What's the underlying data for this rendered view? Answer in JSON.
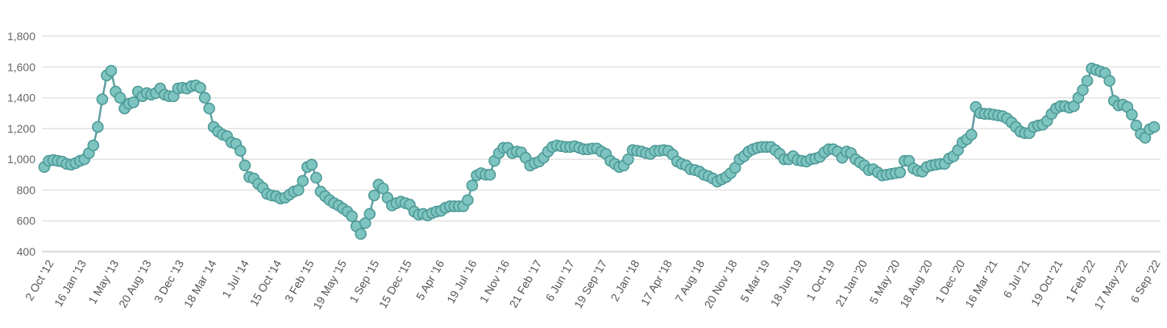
{
  "chart_data": {
    "type": "line",
    "title": "",
    "xlabel": "",
    "ylabel": "",
    "ylim": [
      400,
      1800
    ],
    "y_ticks": [
      "400",
      "600",
      "800",
      "1,000",
      "1,200",
      "1,400",
      "1,600",
      "1,800"
    ],
    "x_tick_labels": [
      "2 Oct '12",
      "16 Jan '13",
      "1 May '13",
      "20 Aug '13",
      "3 Dec '13",
      "18 Mar '14",
      "1 Jul '14",
      "15 Oct '14",
      "3 Feb '15",
      "19 May '15",
      "1 Sep '15",
      "15 Dec '15",
      "5 Apr '16",
      "19 Jul '16",
      "1 Nov '16",
      "21 Feb '17",
      "6 Jun '17",
      "19 Sep '17",
      "2 Jan '18",
      "17 Apr '18",
      "7 Aug '18",
      "20 Nov '18",
      "5 Mar '19",
      "18 Jun '19",
      "1 Oct '19",
      "21 Jan '20",
      "5 May '20",
      "18 Aug '20",
      "1 Dec '20",
      "16 Mar '21",
      "6 Jul '21",
      "19 Oct '21",
      "1 Feb '22",
      "17 May '22",
      "6 Sep '22"
    ],
    "grid": true,
    "legend": "none",
    "color": "#7ec4c1",
    "line_color": "#5f9ea0",
    "series": [
      {
        "values": [
          950,
          990,
          995,
          990,
          985,
          970,
          965,
          975,
          990,
          1000,
          1040,
          1090,
          1210,
          1390,
          1545,
          1575,
          1440,
          1400,
          1330,
          1360,
          1370,
          1440,
          1410,
          1430,
          1420,
          1430,
          1460,
          1420,
          1410,
          1410,
          1460,
          1465,
          1460,
          1475,
          1480,
          1465,
          1400,
          1330,
          1210,
          1180,
          1160,
          1150,
          1110,
          1100,
          1055,
          960,
          885,
          875,
          840,
          815,
          775,
          765,
          760,
          745,
          750,
          770,
          790,
          800,
          860,
          950,
          965,
          880,
          790,
          760,
          735,
          715,
          700,
          680,
          660,
          630,
          565,
          515,
          585,
          645,
          765,
          835,
          810,
          750,
          700,
          715,
          725,
          715,
          705,
          660,
          640,
          645,
          635,
          650,
          660,
          665,
          685,
          695,
          695,
          695,
          695,
          735,
          830,
          895,
          910,
          900,
          900,
          990,
          1040,
          1075,
          1075,
          1040,
          1050,
          1045,
          1010,
          960,
          975,
          985,
          1010,
          1050,
          1080,
          1090,
          1085,
          1080,
          1080,
          1085,
          1075,
          1065,
          1065,
          1070,
          1070,
          1050,
          1035,
          990,
          970,
          950,
          960,
          1000,
          1060,
          1055,
          1050,
          1040,
          1035,
          1055,
          1055,
          1060,
          1055,
          1030,
          985,
          970,
          960,
          935,
          930,
          920,
          900,
          890,
          875,
          855,
          870,
          885,
          910,
          945,
          1000,
          1020,
          1050,
          1065,
          1075,
          1080,
          1080,
          1080,
          1060,
          1035,
          1000,
          1000,
          1020,
          995,
          990,
          985,
          1000,
          1005,
          1015,
          1045,
          1065,
          1065,
          1050,
          1010,
          1050,
          1040,
          1000,
          980,
          960,
          930,
          935,
          915,
          895,
          900,
          905,
          910,
          915,
          990,
          990,
          940,
          925,
          920,
          950,
          960,
          965,
          970,
          970,
          1005,
          1020,
          1060,
          1110,
          1130,
          1160,
          1340,
          1300,
          1295,
          1295,
          1290,
          1285,
          1280,
          1265,
          1240,
          1210,
          1180,
          1170,
          1170,
          1210,
          1220,
          1225,
          1250,
          1295,
          1330,
          1345,
          1345,
          1335,
          1345,
          1400,
          1450,
          1510,
          1590,
          1580,
          1570,
          1560,
          1510,
          1380,
          1350,
          1355,
          1340,
          1290,
          1220,
          1165,
          1140,
          1195,
          1210
        ]
      }
    ]
  }
}
